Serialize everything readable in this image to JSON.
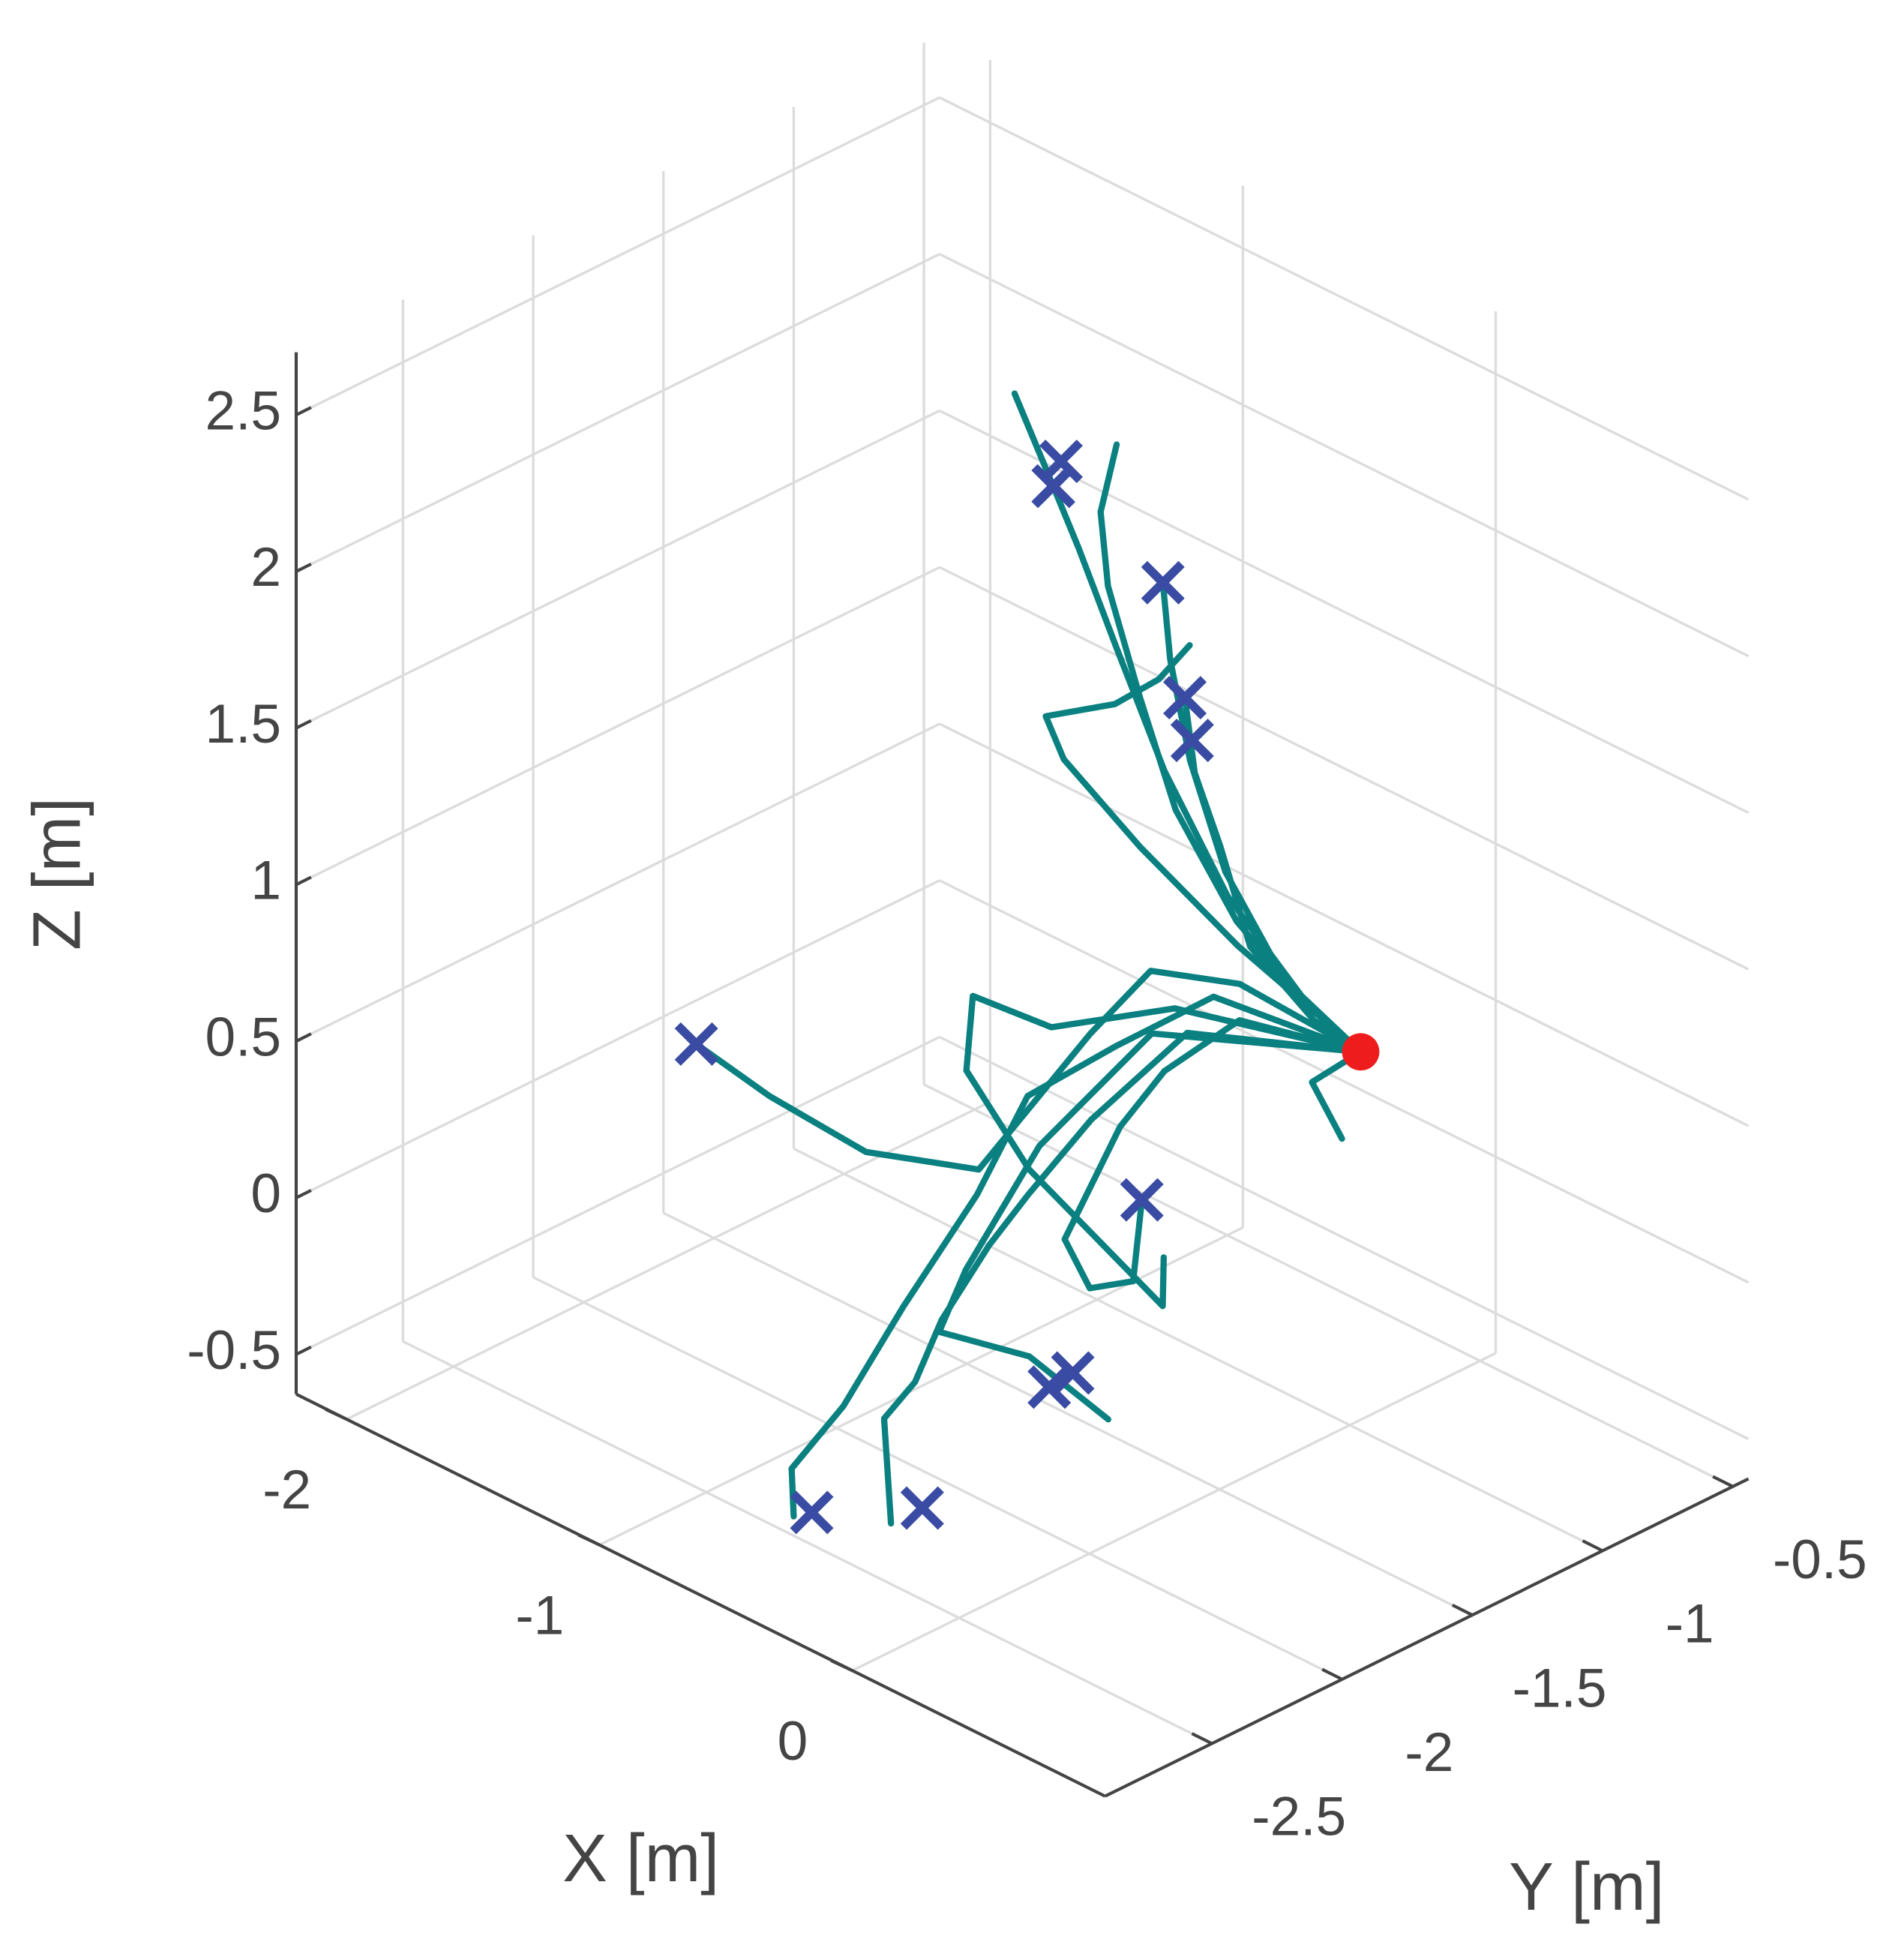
{
  "chart_data": {
    "type": "line3d",
    "xlabel": "X [m]",
    "ylabel": "Y [m]",
    "zlabel": "Z [m]",
    "xlim": [
      -2.2,
      1
    ],
    "ylim": [
      -2.91,
      -0.44
    ],
    "zlim": [
      -0.627,
      2.7
    ],
    "xticks": [
      -2,
      -1,
      0
    ],
    "yticks": [
      -2.5,
      -2,
      -1.5,
      -1,
      -0.5
    ],
    "zticks": [
      -0.5,
      0,
      0.5,
      1,
      1.5,
      2,
      2.5
    ],
    "grid": true,
    "line_color": "#0b8080",
    "series": [
      {
        "x": [
          -0.06,
          -0.15,
          -0.38,
          -0.63,
          -0.84,
          -1.0,
          -1.05,
          -1.12
        ],
        "y": [
          -0.9,
          -1.04,
          -1.1,
          -1.1,
          -1.08,
          -1.07,
          -1.12,
          -1.2
        ],
        "z": [
          0.5,
          0.7,
          0.95,
          1.25,
          1.55,
          1.8,
          2.0,
          2.3
        ]
      },
      {
        "x": [
          -0.06,
          -0.02,
          -0.2,
          -0.39,
          -0.53,
          -0.73,
          -0.79,
          -0.84
        ],
        "y": [
          -0.9,
          -1.13,
          -1.24,
          -1.29,
          -1.29,
          -1.22,
          -1.19,
          -1.08
        ],
        "z": [
          0.5,
          0.75,
          1.0,
          1.3,
          1.6,
          1.85,
          2.05,
          2.2
        ]
      },
      {
        "x": [
          -0.06,
          -0.23,
          -0.42,
          -0.56,
          -0.69,
          -0.76
        ],
        "y": [
          -0.9,
          -1.02,
          -1.07,
          -1.07,
          -1.02,
          -0.98
        ],
        "z": [
          0.5,
          0.7,
          1.0,
          1.3,
          1.55,
          1.75
        ]
      },
      {
        "x": [
          -0.06,
          -0.09,
          -0.26,
          -0.41,
          -0.5,
          -0.57
        ],
        "y": [
          -0.9,
          -1.05,
          -1.13,
          -1.1,
          -1.11,
          -1.08
        ],
        "z": [
          0.5,
          0.65,
          0.85,
          1.1,
          1.3,
          1.5
        ]
      },
      {
        "x": [
          -0.06,
          -0.35,
          -0.56,
          -0.75,
          -0.77,
          -0.62,
          -0.57,
          -0.52
        ],
        "y": [
          -0.9,
          -1.09,
          -1.26,
          -1.37,
          -1.42,
          -1.3,
          -1.18,
          -1.11
        ],
        "z": [
          0.5,
          0.8,
          1.1,
          1.35,
          1.5,
          1.55,
          1.6,
          1.7
        ]
      },
      {
        "x": [
          -0.06,
          -0.57,
          -0.86,
          -0.79,
          -0.53,
          -0.76,
          -1.11,
          -1.4
        ],
        "y": [
          -0.9,
          -0.87,
          -0.93,
          -1.23,
          -1.91,
          -2.12,
          -2.15,
          -2.15
        ],
        "z": [
          0.5,
          0.5,
          0.45,
          0.4,
          0.35,
          0.4,
          0.45,
          0.5
        ]
      },
      {
        "x": [
          -0.06,
          -0.55,
          -0.62,
          -0.61,
          -0.52,
          -0.4,
          -0.28,
          -0.4
        ],
        "y": [
          -0.9,
          -0.89,
          -1.11,
          -1.29,
          -1.59,
          -1.61,
          -1.56,
          -1.41
        ],
        "z": [
          0.5,
          0.4,
          0.3,
          0.2,
          0.0,
          -0.1,
          -0.05,
          0.1
        ]
      },
      {
        "x": [
          -0.06,
          -0.57,
          -0.69,
          -0.79,
          -0.62,
          -0.57,
          -0.54,
          -0.58,
          -0.51
        ],
        "y": [
          -0.9,
          -0.97,
          -1.23,
          -1.47,
          -1.83,
          -2.16,
          -2.42,
          -2.58,
          -2.64
        ],
        "z": [
          0.5,
          0.5,
          0.4,
          0.3,
          0.2,
          0.0,
          -0.2,
          -0.35,
          -0.45
        ]
      },
      {
        "x": [
          -0.06,
          -0.54,
          -0.57,
          -0.52,
          -0.52,
          -0.44,
          -0.37,
          -0.41,
          -0.29
        ],
        "y": [
          -0.9,
          -1.1,
          -1.44,
          -1.73,
          -1.88,
          -2.14,
          -2.31,
          -2.39,
          -2.48
        ],
        "z": [
          0.5,
          0.45,
          0.3,
          0.2,
          0.1,
          0.0,
          -0.1,
          -0.2,
          -0.45
        ]
      },
      {
        "x": [
          -0.06,
          -0.67,
          -0.63,
          -0.53,
          -0.46,
          -0.31,
          -0.09
        ],
        "y": [
          -0.9,
          -1.11,
          -1.58,
          -1.96,
          -2.13,
          -1.93,
          -1.84
        ],
        "z": [
          0.5,
          0.4,
          0.25,
          0.05,
          -0.05,
          -0.15,
          -0.3
        ]
      },
      {
        "x": [
          -0.06,
          -0.6,
          -0.83,
          -1.11,
          -0.95,
          -0.62,
          -0.06,
          -0.19
        ],
        "y": [
          -0.9,
          -1.09,
          -1.34,
          -1.37,
          -1.55,
          -1.63,
          -1.66,
          -1.53
        ],
        "z": [
          0.5,
          0.5,
          0.45,
          0.45,
          0.35,
          0.2,
          0.0,
          0.05
        ]
      },
      {
        "x": [
          -0.06,
          -0.16,
          0.0
        ],
        "y": [
          -0.9,
          -0.99,
          -1.03
        ],
        "z": [
          0.5,
          0.4,
          0.3
        ]
      }
    ],
    "end_points": {
      "marker": "x",
      "color": "#3a4ba3",
      "x": [
        -1.05,
        -1.07,
        -1.11,
        -0.76,
        -0.57,
        -0.51,
        -1.4,
        -0.4,
        -0.22,
        -0.21,
        -0.49,
        -0.29
      ],
      "y": [
        -1.12,
        -1.07,
        -1.06,
        -0.98,
        -1.08,
        -1.11,
        -2.15,
        -1.41,
        -1.85,
        -1.95,
        -2.59,
        -2.36
      ],
      "z": [
        2.0,
        2.05,
        1.95,
        1.75,
        1.5,
        1.4,
        0.5,
        0.1,
        -0.2,
        -0.2,
        -0.45,
        -0.45
      ]
    },
    "start_point": {
      "marker": "o",
      "color": "#ee1c1c",
      "x": [
        -0.06
      ],
      "y": [
        -0.9
      ],
      "z": [
        0.5
      ]
    }
  }
}
